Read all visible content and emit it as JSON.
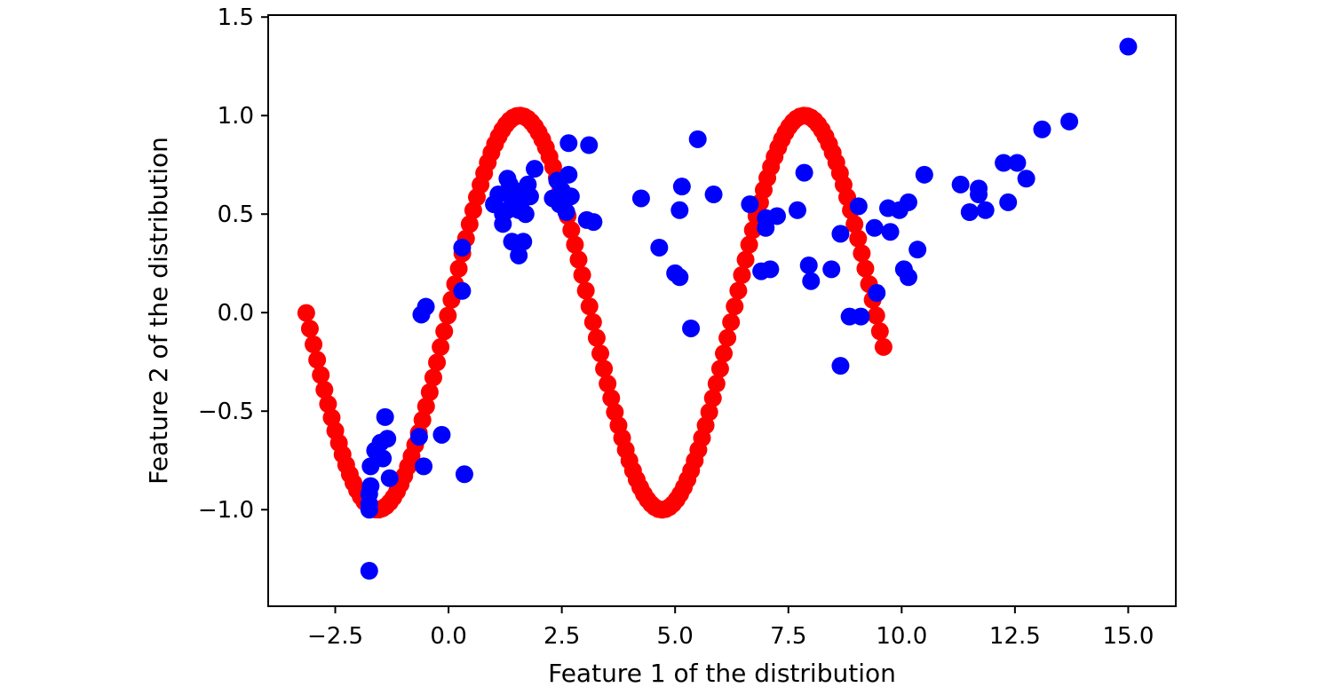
{
  "chart_data": {
    "type": "scatter",
    "xlabel": "Feature 1 of the distribution",
    "ylabel": "Feature 2 of the distribution",
    "xlim": [
      -3.98,
      16.05
    ],
    "ylim": [
      -1.49,
      1.51
    ],
    "x_ticks": [
      -2.5,
      0.0,
      2.5,
      5.0,
      7.5,
      10.0,
      12.5,
      15.0
    ],
    "x_tick_labels": [
      "−2.5",
      "0.0",
      "2.5",
      "5.0",
      "7.5",
      "10.0",
      "12.5",
      "15.0"
    ],
    "y_ticks": [
      -1.0,
      -0.5,
      0.0,
      0.5,
      1.0,
      1.5
    ],
    "y_tick_labels": [
      "−1.0",
      "−0.5",
      "0.0",
      "0.5",
      "1.0",
      "1.5"
    ],
    "grid": false,
    "series": [
      {
        "color": "#ff0000",
        "curve": {
          "function": "sin",
          "x_start": -3.14,
          "x_end": 9.6,
          "count": 160
        }
      },
      {
        "color": "#0000ff",
        "points": [
          [
            -1.75,
            -1.31
          ],
          [
            -1.75,
            -1.0
          ],
          [
            -1.75,
            -0.97
          ],
          [
            -1.75,
            -0.92
          ],
          [
            -1.72,
            -0.88
          ],
          [
            -1.72,
            -0.78
          ],
          [
            -1.62,
            -0.7
          ],
          [
            -1.5,
            -0.66
          ],
          [
            -1.45,
            -0.74
          ],
          [
            -1.4,
            -0.53
          ],
          [
            -1.3,
            -0.84
          ],
          [
            -1.35,
            -0.64
          ],
          [
            -0.65,
            -0.63
          ],
          [
            -0.55,
            -0.78
          ],
          [
            -0.15,
            -0.62
          ],
          [
            0.35,
            -0.82
          ],
          [
            -0.6,
            -0.01
          ],
          [
            -0.5,
            0.03
          ],
          [
            0.3,
            0.11
          ],
          [
            0.3,
            0.33
          ],
          [
            1.0,
            0.55
          ],
          [
            1.1,
            0.6
          ],
          [
            1.2,
            0.5
          ],
          [
            1.3,
            0.68
          ],
          [
            1.35,
            0.65
          ],
          [
            1.4,
            0.58
          ],
          [
            1.45,
            0.62
          ],
          [
            1.5,
            0.55
          ],
          [
            1.55,
            0.52
          ],
          [
            1.6,
            0.56
          ],
          [
            1.65,
            0.6
          ],
          [
            1.7,
            0.5
          ],
          [
            1.75,
            0.65
          ],
          [
            1.8,
            0.59
          ],
          [
            1.2,
            0.45
          ],
          [
            1.4,
            0.36
          ],
          [
            1.55,
            0.29
          ],
          [
            1.65,
            0.36
          ],
          [
            1.3,
            0.52
          ],
          [
            1.9,
            0.73
          ],
          [
            2.3,
            0.58
          ],
          [
            2.45,
            0.55
          ],
          [
            2.4,
            0.67
          ],
          [
            2.5,
            0.62
          ],
          [
            2.6,
            0.51
          ],
          [
            2.65,
            0.7
          ],
          [
            2.7,
            0.59
          ],
          [
            2.65,
            0.86
          ],
          [
            3.1,
            0.85
          ],
          [
            3.05,
            0.47
          ],
          [
            3.2,
            0.46
          ],
          [
            4.25,
            0.58
          ],
          [
            4.65,
            0.33
          ],
          [
            5.0,
            0.2
          ],
          [
            5.1,
            0.18
          ],
          [
            5.15,
            0.64
          ],
          [
            5.1,
            0.52
          ],
          [
            5.35,
            -0.08
          ],
          [
            5.5,
            0.88
          ],
          [
            5.85,
            0.6
          ],
          [
            6.65,
            0.55
          ],
          [
            6.9,
            0.21
          ],
          [
            7.0,
            0.48
          ],
          [
            7.0,
            0.43
          ],
          [
            7.1,
            0.22
          ],
          [
            7.25,
            0.49
          ],
          [
            7.7,
            0.52
          ],
          [
            7.85,
            0.71
          ],
          [
            7.95,
            0.24
          ],
          [
            8.0,
            0.16
          ],
          [
            8.45,
            0.22
          ],
          [
            8.65,
            0.4
          ],
          [
            8.65,
            -0.27
          ],
          [
            8.85,
            -0.02
          ],
          [
            9.05,
            0.54
          ],
          [
            9.1,
            -0.02
          ],
          [
            9.4,
            0.43
          ],
          [
            9.45,
            0.1
          ],
          [
            9.7,
            0.53
          ],
          [
            9.75,
            0.41
          ],
          [
            9.95,
            0.52
          ],
          [
            10.05,
            0.22
          ],
          [
            10.15,
            0.56
          ],
          [
            10.15,
            0.18
          ],
          [
            10.35,
            0.32
          ],
          [
            10.5,
            0.7
          ],
          [
            11.3,
            0.65
          ],
          [
            11.5,
            0.51
          ],
          [
            11.7,
            0.6
          ],
          [
            11.7,
            0.63
          ],
          [
            11.85,
            0.52
          ],
          [
            12.25,
            0.76
          ],
          [
            12.35,
            0.56
          ],
          [
            12.55,
            0.76
          ],
          [
            12.75,
            0.68
          ],
          [
            13.1,
            0.93
          ],
          [
            13.7,
            0.97
          ],
          [
            15.0,
            1.35
          ]
        ]
      }
    ]
  }
}
